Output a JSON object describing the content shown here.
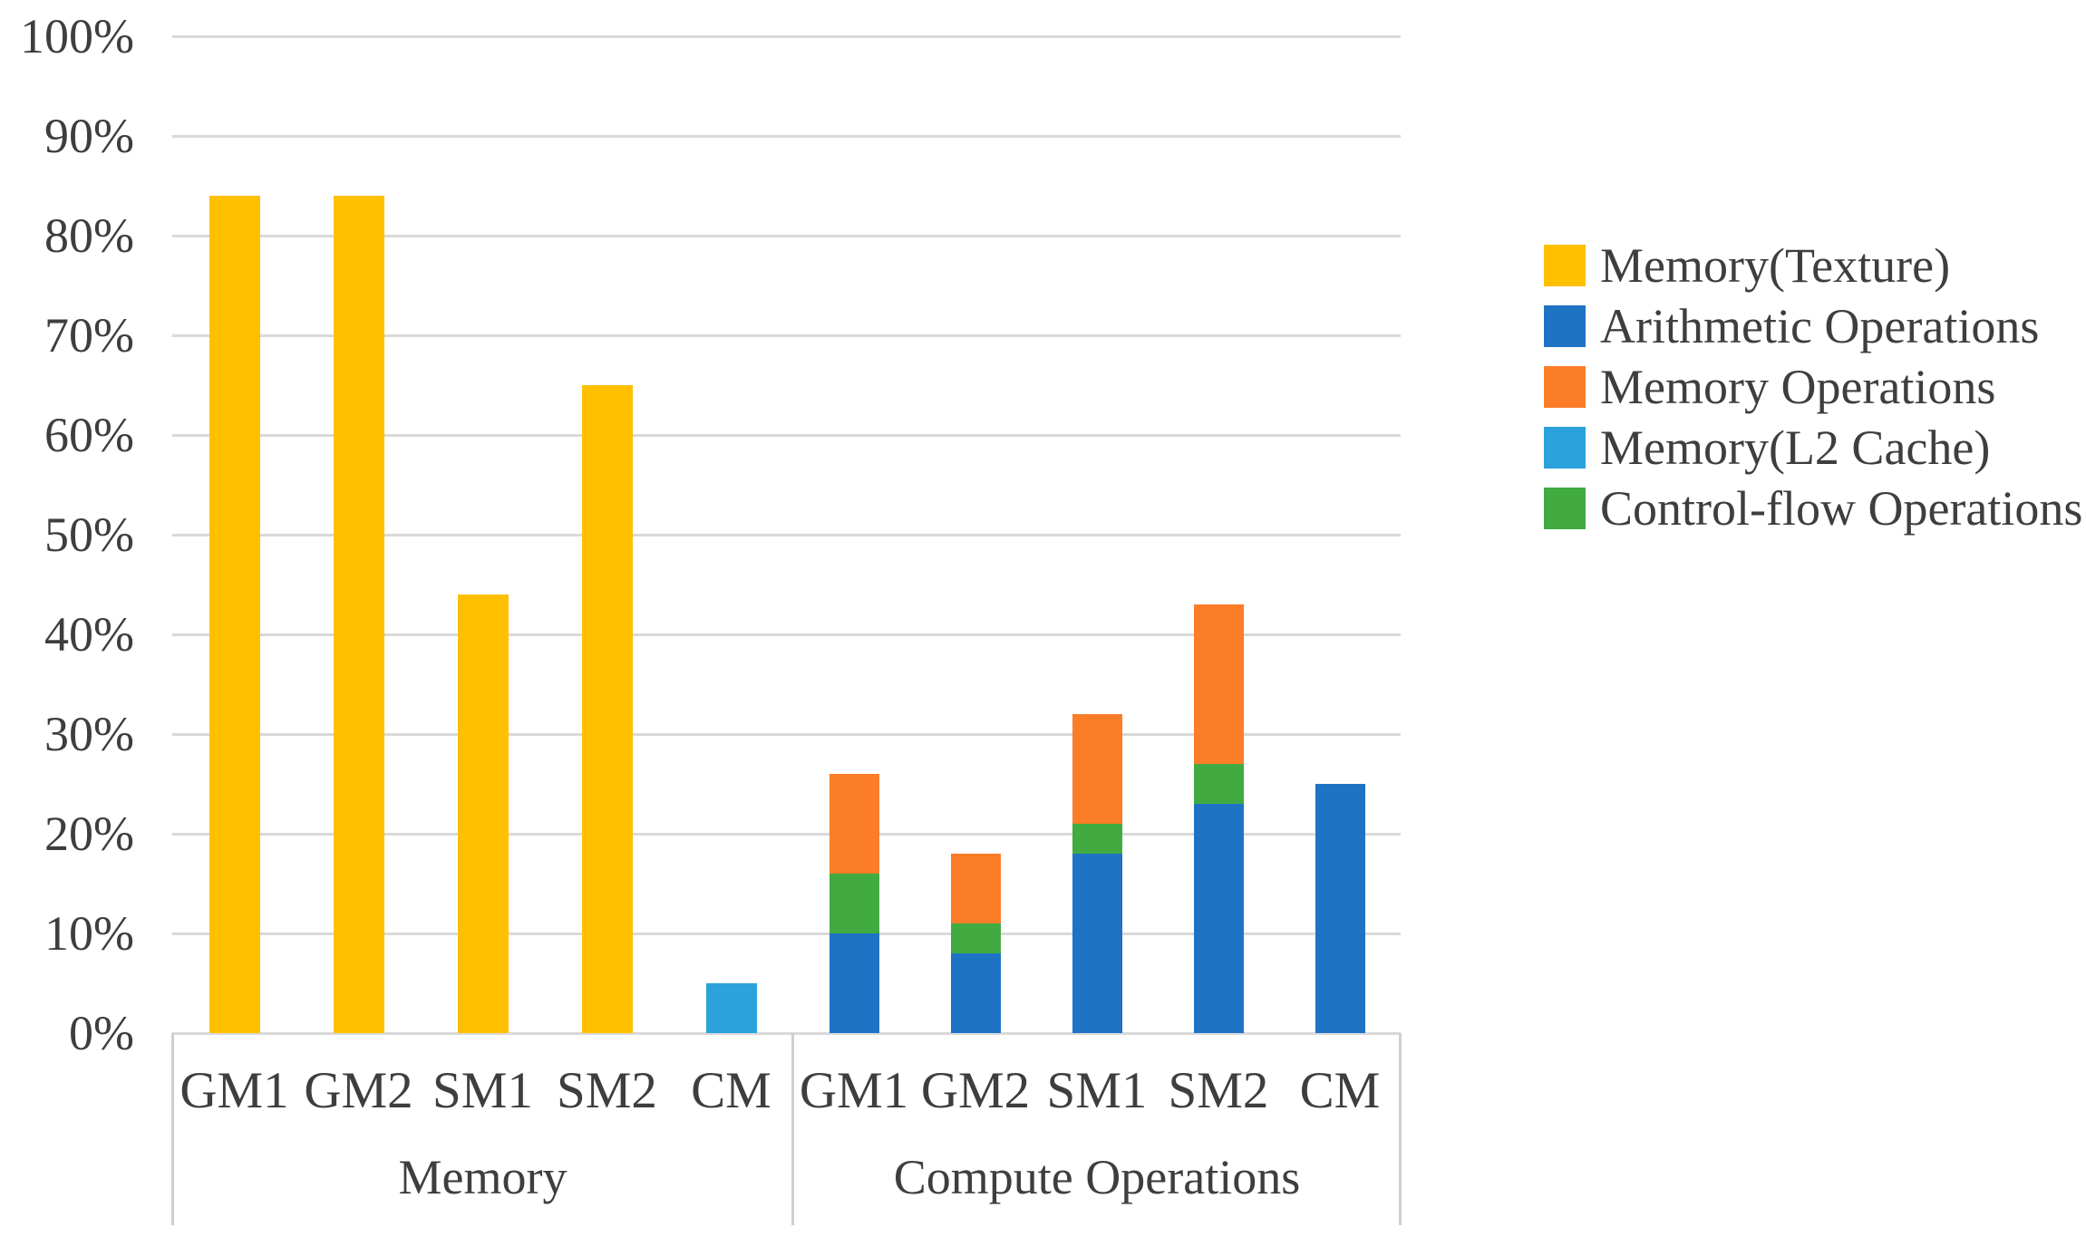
{
  "style": {
    "background": "#FFFFFF",
    "axis_text_color": "#3E3E3E",
    "gridline_color": "#D9D9D9",
    "separator_color": "#CFCFCF"
  },
  "series_colors": {
    "Memory(Texture)": "#FFC000",
    "Arithmetic Operations": "#1F73C5",
    "Memory Operations": "#FB7D28",
    "Memory(L2 Cache)": "#2BA2DC",
    "Control-flow Operations": "#41AB41"
  },
  "legend": {
    "position": "right",
    "entries": [
      {
        "label": "Memory(Texture)",
        "color": "#FFC000"
      },
      {
        "label": "Arithmetic Operations",
        "color": "#1F73C5"
      },
      {
        "label": "Memory Operations",
        "color": "#FB7D28"
      },
      {
        "label": "Memory(L2 Cache)",
        "color": "#2BA2DC"
      },
      {
        "label": "Control-flow Operations",
        "color": "#41AB41"
      }
    ]
  },
  "y_axis": {
    "min": 0,
    "max": 100,
    "step": 10,
    "unit": "%",
    "tick_labels": [
      "100%",
      "90%",
      "80%",
      "70%",
      "60%",
      "50%",
      "40%",
      "30%",
      "20%",
      "10%",
      "0%"
    ]
  },
  "chart_data": {
    "type": "bar",
    "stacked": true,
    "unit": "%",
    "ylim": [
      0,
      100
    ],
    "grid": "horizontal",
    "legend_position": "right",
    "groups": [
      {
        "label": "Memory",
        "categories": [
          "GM1",
          "GM2",
          "SM1",
          "SM2",
          "CM"
        ],
        "bars": [
          {
            "category": "GM1",
            "segments": [
              {
                "series": "Memory(Texture)",
                "value": 84
              }
            ]
          },
          {
            "category": "GM2",
            "segments": [
              {
                "series": "Memory(Texture)",
                "value": 84
              }
            ]
          },
          {
            "category": "SM1",
            "segments": [
              {
                "series": "Memory(Texture)",
                "value": 44
              }
            ]
          },
          {
            "category": "SM2",
            "segments": [
              {
                "series": "Memory(Texture)",
                "value": 65
              }
            ]
          },
          {
            "category": "CM",
            "segments": [
              {
                "series": "Memory(L2 Cache)",
                "value": 5
              }
            ]
          }
        ]
      },
      {
        "label": "Compute Operations",
        "categories": [
          "GM1",
          "GM2",
          "SM1",
          "SM2",
          "CM"
        ],
        "bars": [
          {
            "category": "GM1",
            "segments": [
              {
                "series": "Arithmetic Operations",
                "value": 10
              },
              {
                "series": "Control-flow Operations",
                "value": 6
              },
              {
                "series": "Memory Operations",
                "value": 10
              }
            ]
          },
          {
            "category": "GM2",
            "segments": [
              {
                "series": "Arithmetic Operations",
                "value": 8
              },
              {
                "series": "Control-flow Operations",
                "value": 3
              },
              {
                "series": "Memory Operations",
                "value": 7
              }
            ]
          },
          {
            "category": "SM1",
            "segments": [
              {
                "series": "Arithmetic Operations",
                "value": 18
              },
              {
                "series": "Control-flow Operations",
                "value": 3
              },
              {
                "series": "Memory Operations",
                "value": 11
              }
            ]
          },
          {
            "category": "SM2",
            "segments": [
              {
                "series": "Arithmetic Operations",
                "value": 23
              },
              {
                "series": "Control-flow Operations",
                "value": 4
              },
              {
                "series": "Memory Operations",
                "value": 16
              }
            ]
          },
          {
            "category": "CM",
            "segments": [
              {
                "series": "Arithmetic Operations",
                "value": 25
              }
            ]
          }
        ]
      }
    ]
  }
}
